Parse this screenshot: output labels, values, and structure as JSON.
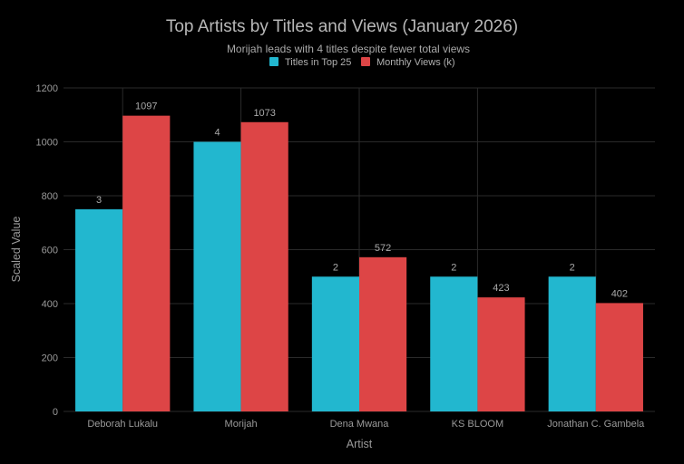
{
  "chart_data": {
    "type": "bar",
    "title": "Top Artists by Titles and Views (January 2026)",
    "subtitle": "Morijah leads with 4 titles despite fewer total views",
    "xlabel": "Artist",
    "ylabel": "Scaled Value",
    "ylim": [
      0,
      1200
    ],
    "yticks": [
      0,
      200,
      400,
      600,
      800,
      1000,
      1200
    ],
    "grid": true,
    "legend_position": "top-center",
    "categories": [
      "Deborah Lukalu",
      "Morijah",
      "Dena Mwana",
      "KS BLOOM",
      "Jonathan C. Gambela"
    ],
    "series": [
      {
        "name": "Titles in Top 25",
        "color": "#22b7cf",
        "values": [
          750,
          1000,
          500,
          500,
          500
        ],
        "labels": [
          "3",
          "4",
          "2",
          "2",
          "2"
        ]
      },
      {
        "name": "Monthly Views (k)",
        "color": "#dd4546",
        "values": [
          1097,
          1073,
          572,
          423,
          402
        ],
        "labels": [
          "1097",
          "1073",
          "572",
          "423",
          "402"
        ]
      }
    ]
  },
  "colors": {
    "background": "#000000",
    "gridline": "#2a2a2a",
    "text": "#9a9a9a"
  }
}
